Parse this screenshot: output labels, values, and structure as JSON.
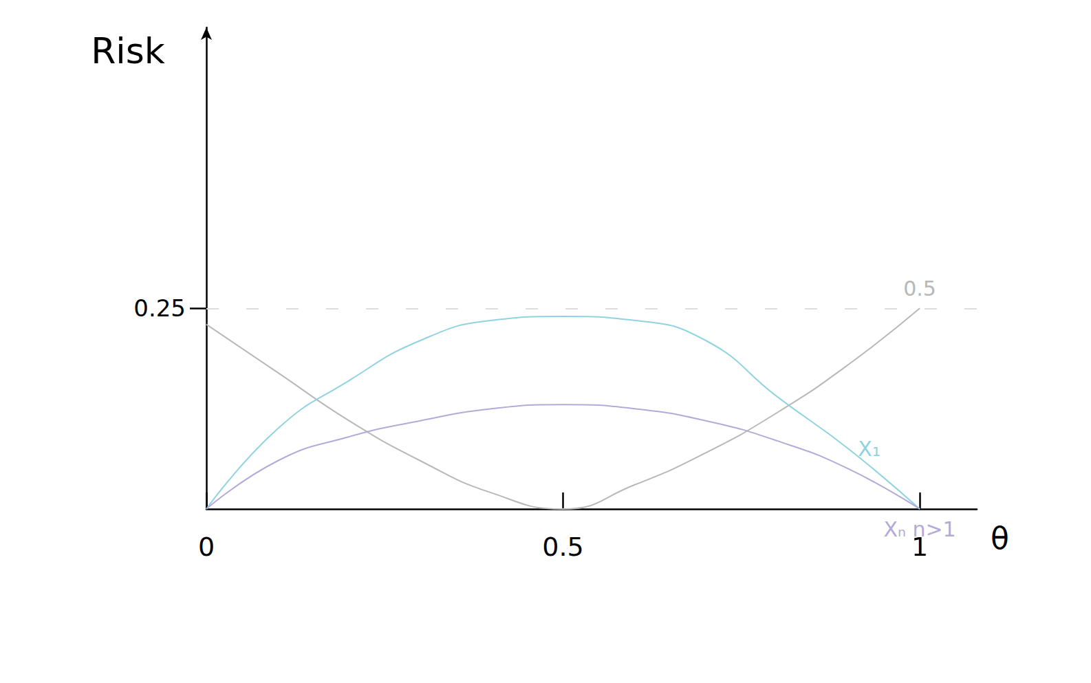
{
  "chart_data": {
    "type": "line",
    "x_label": "θ",
    "y_label": "Risk",
    "x": [
      0,
      0.1,
      0.2,
      0.3,
      0.4,
      0.5,
      0.6,
      0.7,
      0.8,
      0.9,
      1
    ],
    "xlim": [
      0,
      1.08
    ],
    "xticks": [
      0,
      0.5,
      1
    ],
    "ylim": [
      0,
      0.6
    ],
    "yticks": [
      0.25
    ],
    "grid": true,
    "series": [
      {
        "name": "0.5",
        "color": "#b8b8b8",
        "values": [
          0.23,
          0.17,
          0.11,
          0.06,
          0.02,
          0,
          0.03,
          0.07,
          0.12,
          0.18,
          0.25
        ]
      },
      {
        "name": "X₁",
        "color": "#8fd3e0",
        "values": [
          0,
          0.1,
          0.16,
          0.21,
          0.235,
          0.24,
          0.235,
          0.21,
          0.14,
          0.075,
          0
        ]
      },
      {
        "name": "Xₙ n>1",
        "color": "#b4a9d9",
        "values": [
          0,
          0.06,
          0.09,
          0.11,
          0.125,
          0.13,
          0.125,
          0.11,
          0.085,
          0.05,
          0
        ]
      }
    ]
  }
}
